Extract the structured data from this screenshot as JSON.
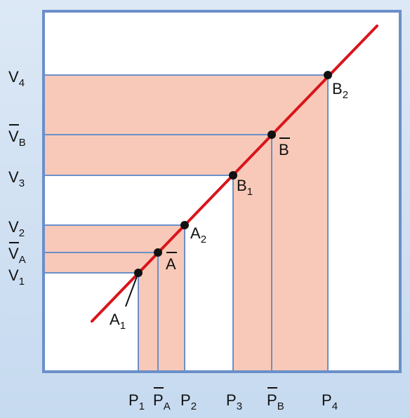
{
  "colors": {
    "line": "#d9151b",
    "band": "#f8c9b8",
    "frame": "#6b8fc9",
    "guide": "#6b8fc9",
    "point": "#111111",
    "plot_bg": "#ffffff"
  },
  "y_labels": {
    "v4": {
      "base": "V",
      "sub": "4"
    },
    "vb": {
      "base": "V",
      "sub": "B"
    },
    "v3": {
      "base": "V",
      "sub": "3"
    },
    "v2": {
      "base": "V",
      "sub": "2"
    },
    "va": {
      "base": "V",
      "sub": "A"
    },
    "v1": {
      "base": "V",
      "sub": "1"
    }
  },
  "x_labels": {
    "p1": {
      "base": "P",
      "sub": "1"
    },
    "pa": {
      "base": "P",
      "sub": "A"
    },
    "p2": {
      "base": "P",
      "sub": "2"
    },
    "p3": {
      "base": "P",
      "sub": "3"
    },
    "pb": {
      "base": "P",
      "sub": "B"
    },
    "p4": {
      "base": "P",
      "sub": "4"
    }
  },
  "point_labels": {
    "a1": {
      "base": "A",
      "sub": "1"
    },
    "abar": {
      "base": "A",
      "sub": ""
    },
    "a2": {
      "base": "A",
      "sub": "2"
    },
    "b1": {
      "base": "B",
      "sub": "1"
    },
    "bbar": {
      "base": "B",
      "sub": ""
    },
    "b2": {
      "base": "B",
      "sub": "2"
    }
  }
}
